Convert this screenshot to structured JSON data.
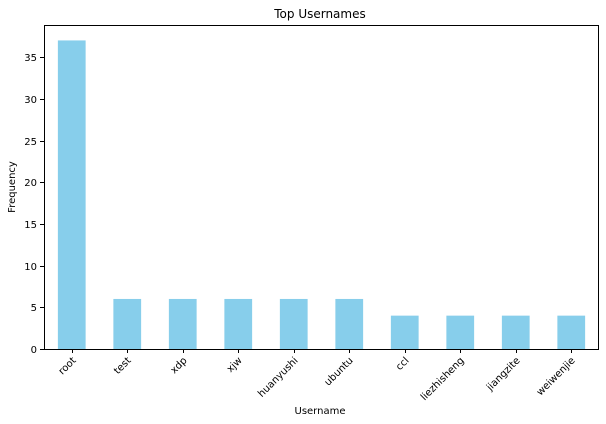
{
  "chart_data": {
    "type": "bar",
    "title": "Top Usernames",
    "xlabel": "Username",
    "ylabel": "Frequency",
    "categories": [
      "root",
      "test",
      "xdp",
      "xjw",
      "huanyushi",
      "ubuntu",
      "ccl",
      "liezhisheng",
      "jiangzite",
      "weiwenjie"
    ],
    "values": [
      37,
      6,
      6,
      6,
      6,
      6,
      4,
      4,
      4,
      4
    ],
    "ylim": [
      0,
      38.85
    ],
    "yticks": [
      0,
      5,
      10,
      15,
      20,
      25,
      30,
      35
    ],
    "bar_color": "#87ceeb",
    "grid": false,
    "legend": false
  }
}
